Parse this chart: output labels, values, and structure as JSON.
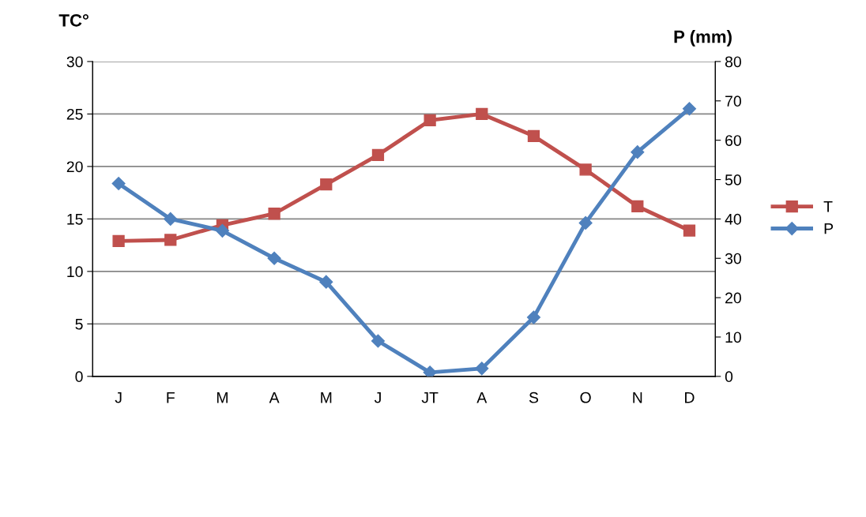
{
  "chart_data": {
    "type": "line",
    "categories": [
      "J",
      "F",
      "M",
      "A",
      "M",
      "J",
      "JT",
      "A",
      "S",
      "O",
      "N",
      "D"
    ],
    "ylabel": "TC°",
    "y2label": "P (mm)",
    "series": [
      {
        "name": "T",
        "color": "#c0504d",
        "marker": "square",
        "values": [
          12.9,
          13.0,
          14.4,
          15.5,
          18.3,
          21.1,
          24.4,
          25.0,
          22.9,
          19.7,
          16.2,
          13.9
        ]
      },
      {
        "name": "P",
        "color": "#4f81bd",
        "marker": "diamond",
        "axis": "y2",
        "values": [
          49,
          40,
          37,
          30,
          24,
          9,
          1,
          2,
          15,
          39,
          57,
          68
        ]
      }
    ],
    "ylim": [
      0,
      30
    ],
    "yticks": [
      0,
      5,
      10,
      15,
      20,
      25,
      30
    ],
    "y2lim": [
      0,
      80
    ],
    "y2ticks": [
      0,
      10,
      20,
      30,
      40,
      50,
      60,
      70,
      80
    ],
    "grid": "y",
    "legend": "right"
  }
}
